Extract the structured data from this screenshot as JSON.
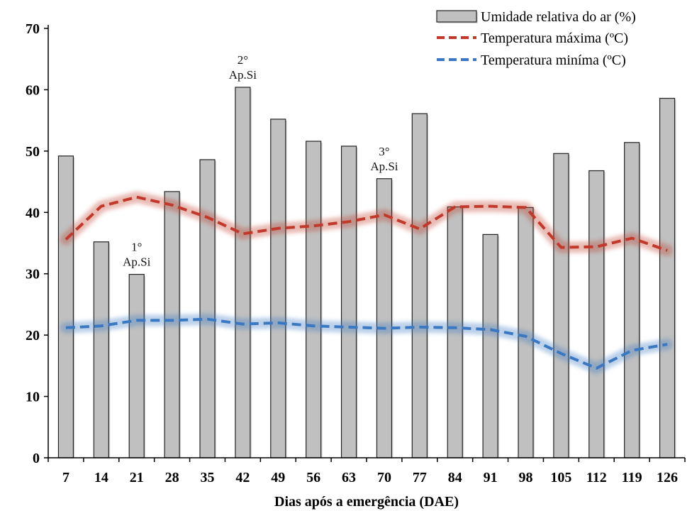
{
  "chart_data": {
    "type": "bar",
    "xlabel": "Dias após a emergência (DAE)",
    "ylabel": "",
    "ylim": [
      0,
      70
    ],
    "yticks": [
      0,
      10,
      20,
      30,
      40,
      50,
      60,
      70
    ],
    "categories": [
      "7",
      "14",
      "21",
      "28",
      "35",
      "42",
      "49",
      "56",
      "63",
      "70",
      "77",
      "84",
      "91",
      "98",
      "105",
      "112",
      "119",
      "126"
    ],
    "grid": false,
    "legend_position": "top-right",
    "series": [
      {
        "name": "Umidade relativa do ar (%)",
        "kind": "bar",
        "color": "#c0c0c0",
        "values": [
          49.2,
          35.2,
          29.9,
          43.4,
          48.6,
          60.4,
          55.2,
          51.6,
          50.8,
          45.5,
          56.1,
          40.9,
          36.4,
          40.8,
          49.6,
          46.8,
          51.4,
          58.6
        ]
      },
      {
        "name": "Temperatura máxima (ºC)",
        "kind": "line",
        "style": "dashed",
        "color": "#c0392b",
        "values": [
          35.6,
          41.0,
          42.5,
          41.2,
          39.2,
          36.5,
          37.4,
          37.8,
          38.5,
          39.6,
          37.3,
          40.9,
          41.0,
          40.8,
          34.3,
          34.4,
          35.8,
          33.8
        ]
      },
      {
        "name": "Temperatura miníma (ºC)",
        "kind": "line",
        "style": "dashed",
        "color": "#3a78c2",
        "values": [
          21.2,
          21.5,
          22.4,
          22.4,
          22.6,
          21.8,
          22.0,
          21.5,
          21.3,
          21.1,
          21.3,
          21.2,
          20.9,
          19.8,
          17.0,
          14.6,
          17.5,
          18.5
        ]
      }
    ],
    "annotations": [
      {
        "category": "21",
        "lines": [
          "1°",
          "Ap.Si"
        ]
      },
      {
        "category": "42",
        "lines": [
          "2°",
          "Ap.Si"
        ]
      },
      {
        "category": "70",
        "lines": [
          "3°",
          "Ap.Si"
        ]
      }
    ]
  }
}
